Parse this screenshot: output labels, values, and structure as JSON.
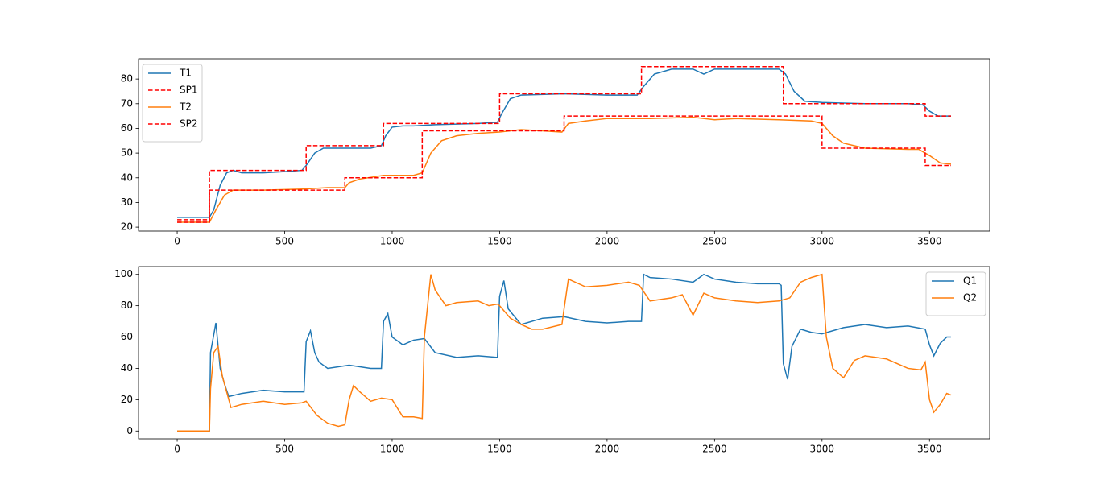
{
  "chart_data": [
    {
      "type": "line",
      "xlim": [
        -180,
        3780
      ],
      "ylim": [
        18.4,
        88.2
      ],
      "xticks": [
        0,
        500,
        1000,
        1500,
        2000,
        2500,
        3000,
        3500
      ],
      "yticks": [
        20,
        30,
        40,
        50,
        60,
        70,
        80
      ],
      "legend": "upper left",
      "series": [
        {
          "name": "T1",
          "color": "#1f77b4",
          "linestyle": "solid",
          "x": [
            0,
            150,
            170,
            200,
            230,
            260,
            300,
            400,
            500,
            580,
            600,
            640,
            680,
            800,
            900,
            950,
            970,
            1000,
            1050,
            1100,
            1200,
            1400,
            1490,
            1510,
            1550,
            1600,
            1800,
            2000,
            2140,
            2170,
            2220,
            2300,
            2400,
            2450,
            2500,
            2700,
            2800,
            2830,
            2870,
            2920,
            3000,
            3200,
            3400,
            3470,
            3500,
            3540,
            3600
          ],
          "values": [
            24,
            24,
            27,
            37,
            42,
            43,
            42,
            42,
            42.5,
            43,
            45,
            50,
            52,
            52,
            52,
            53,
            57,
            60.5,
            61,
            61,
            61.5,
            62,
            62.5,
            66,
            72,
            73.5,
            74,
            73.5,
            73.5,
            77,
            82,
            84,
            84,
            82,
            84,
            84,
            84,
            82,
            75,
            71,
            70.5,
            70,
            70,
            69.5,
            67,
            65,
            65
          ]
        },
        {
          "name": "SP1",
          "color": "#ff0000",
          "linestyle": "dashed",
          "x": [
            0,
            150,
            150,
            600,
            600,
            960,
            960,
            1500,
            1500,
            2160,
            2160,
            2820,
            2820,
            3480,
            3480,
            3600
          ],
          "values": [
            23,
            23,
            43,
            43,
            53,
            53,
            62,
            62,
            74,
            74,
            85,
            85,
            70,
            70,
            65,
            65
          ]
        },
        {
          "name": "T2",
          "color": "#ff7f0e",
          "linestyle": "solid",
          "x": [
            0,
            150,
            180,
            220,
            260,
            400,
            600,
            700,
            780,
            800,
            850,
            960,
            1100,
            1140,
            1180,
            1230,
            1300,
            1400,
            1500,
            1600,
            1700,
            1790,
            1820,
            1900,
            2000,
            2200,
            2400,
            2500,
            2600,
            2800,
            2950,
            3000,
            3050,
            3100,
            3200,
            3400,
            3450,
            3500,
            3550,
            3600
          ],
          "values": [
            22,
            22,
            27,
            33,
            35,
            35,
            35.5,
            36,
            36,
            38,
            39.5,
            41,
            41,
            42,
            50,
            55,
            57,
            58,
            58.5,
            59.5,
            59,
            58.5,
            62,
            63,
            64,
            64,
            64.5,
            63.5,
            64,
            63.5,
            63,
            62,
            57,
            54,
            52,
            51.5,
            51.5,
            49,
            46,
            45.5
          ]
        },
        {
          "name": "SP2",
          "color": "#ff0000",
          "linestyle": "dashed",
          "x": [
            0,
            150,
            150,
            780,
            780,
            1140,
            1140,
            1800,
            1800,
            3000,
            3000,
            3480,
            3480,
            3600
          ],
          "values": [
            22,
            22,
            35,
            35,
            40,
            40,
            59,
            59,
            65,
            65,
            52,
            52,
            45,
            45
          ]
        }
      ]
    },
    {
      "type": "line",
      "xlim": [
        -180,
        3780
      ],
      "ylim": [
        -5,
        105
      ],
      "xticks": [
        0,
        500,
        1000,
        1500,
        2000,
        2500,
        3000,
        3500
      ],
      "yticks": [
        0,
        20,
        40,
        60,
        80,
        100
      ],
      "legend": "upper right",
      "series": [
        {
          "name": "Q1",
          "color": "#1f77b4",
          "linestyle": "solid",
          "x": [
            0,
            150,
            155,
            180,
            200,
            220,
            240,
            300,
            400,
            500,
            590,
            600,
            620,
            640,
            660,
            700,
            800,
            900,
            950,
            960,
            980,
            1000,
            1050,
            1100,
            1150,
            1200,
            1300,
            1400,
            1490,
            1500,
            1520,
            1540,
            1600,
            1700,
            1800,
            1900,
            2000,
            2100,
            2160,
            2170,
            2200,
            2300,
            2400,
            2450,
            2500,
            2600,
            2700,
            2800,
            2810,
            2820,
            2840,
            2860,
            2900,
            2950,
            3000,
            3100,
            3200,
            3300,
            3400,
            3480,
            3500,
            3520,
            3550,
            3580,
            3600
          ],
          "values": [
            0,
            0,
            50,
            69,
            40,
            30,
            22,
            24,
            26,
            25,
            25,
            57,
            64,
            50,
            44,
            40,
            42,
            40,
            40,
            70,
            75,
            60,
            55,
            58,
            59,
            50,
            47,
            48,
            47,
            86,
            96,
            78,
            68,
            72,
            73,
            70,
            69,
            70,
            70,
            100,
            98,
            97,
            95,
            100,
            97,
            95,
            94,
            94,
            93,
            43,
            33,
            54,
            65,
            63,
            62,
            66,
            68,
            66,
            67,
            65,
            55,
            48,
            56,
            60,
            60
          ]
        },
        {
          "name": "Q2",
          "color": "#ff7f0e",
          "linestyle": "solid",
          "x": [
            0,
            150,
            155,
            170,
            190,
            210,
            250,
            300,
            400,
            500,
            580,
            600,
            650,
            700,
            750,
            780,
            800,
            820,
            850,
            900,
            950,
            1000,
            1050,
            1100,
            1140,
            1150,
            1180,
            1200,
            1250,
            1300,
            1400,
            1450,
            1490,
            1500,
            1550,
            1600,
            1650,
            1700,
            1790,
            1800,
            1820,
            1900,
            2000,
            2100,
            2150,
            2200,
            2300,
            2350,
            2400,
            2450,
            2500,
            2600,
            2700,
            2800,
            2850,
            2900,
            2950,
            3000,
            3020,
            3050,
            3100,
            3150,
            3200,
            3300,
            3400,
            3460,
            3480,
            3500,
            3520,
            3550,
            3580,
            3600
          ],
          "values": [
            0,
            0,
            27,
            50,
            54,
            35,
            15,
            17,
            19,
            17,
            18,
            19,
            10,
            5,
            3,
            4,
            20,
            29,
            25,
            19,
            21,
            20,
            9,
            9,
            8,
            60,
            100,
            90,
            80,
            82,
            83,
            80,
            81,
            80,
            72,
            68,
            65,
            65,
            68,
            78,
            97,
            92,
            93,
            95,
            93,
            83,
            85,
            87,
            74,
            88,
            85,
            83,
            82,
            83,
            85,
            95,
            98,
            100,
            60,
            40,
            34,
            45,
            48,
            46,
            40,
            39,
            44,
            20,
            12,
            17,
            24,
            23
          ]
        }
      ]
    }
  ]
}
